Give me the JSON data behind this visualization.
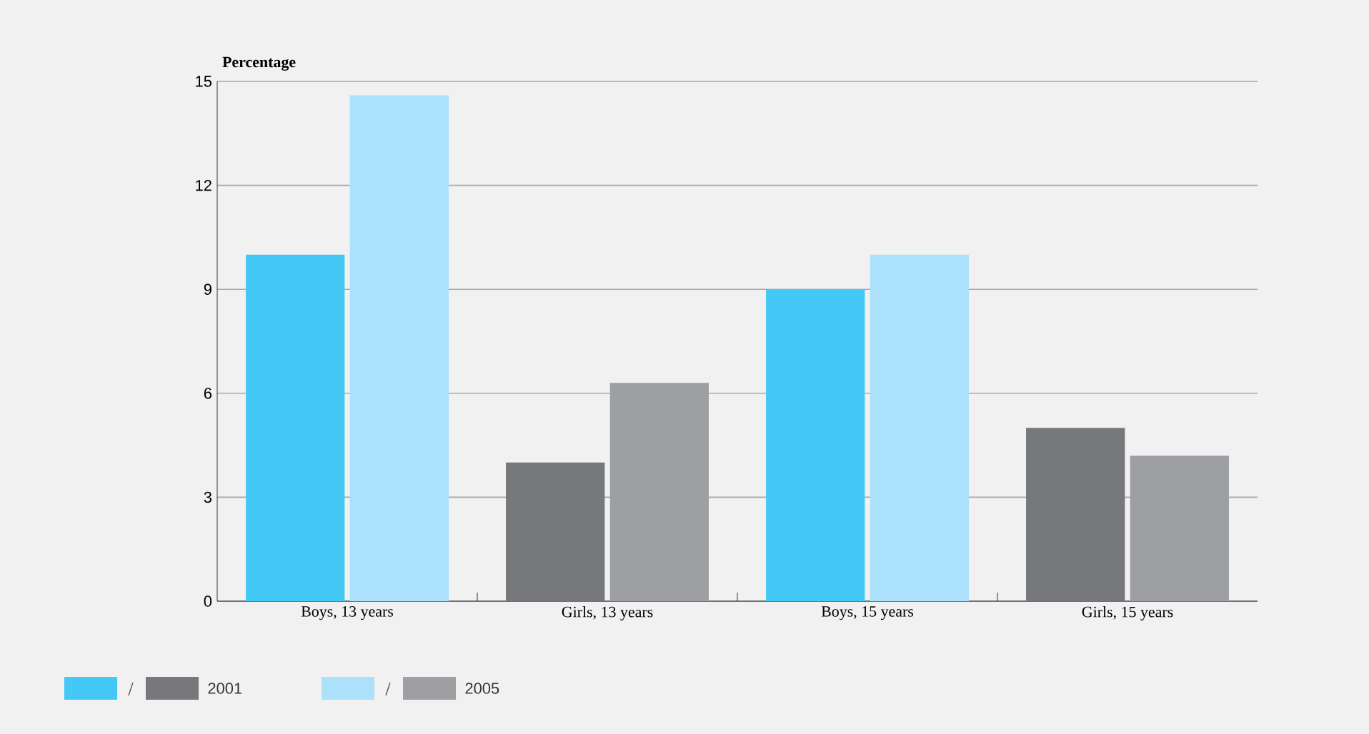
{
  "chart_data": {
    "type": "bar",
    "ylabel": "Percentage",
    "categories": [
      "Boys, 13 years",
      "Girls, 13 years",
      "Boys, 15 years",
      "Girls, 15 years"
    ],
    "series": [
      {
        "name": "2001",
        "colors": [
          "#44c8f5",
          "#77787c",
          "#44c8f5",
          "#77787c"
        ],
        "values": [
          10,
          4,
          9,
          5
        ]
      },
      {
        "name": "2005",
        "colors": [
          "#abe1fb",
          "#9e9fa3",
          "#abe1fb",
          "#9e9fa3"
        ],
        "values": [
          14.6,
          6.3,
          10,
          4.2
        ]
      }
    ],
    "ylim": [
      0,
      15
    ],
    "yticks": [
      0,
      3,
      6,
      9,
      12,
      15
    ],
    "grid": "y",
    "legend": "bottom left"
  }
}
